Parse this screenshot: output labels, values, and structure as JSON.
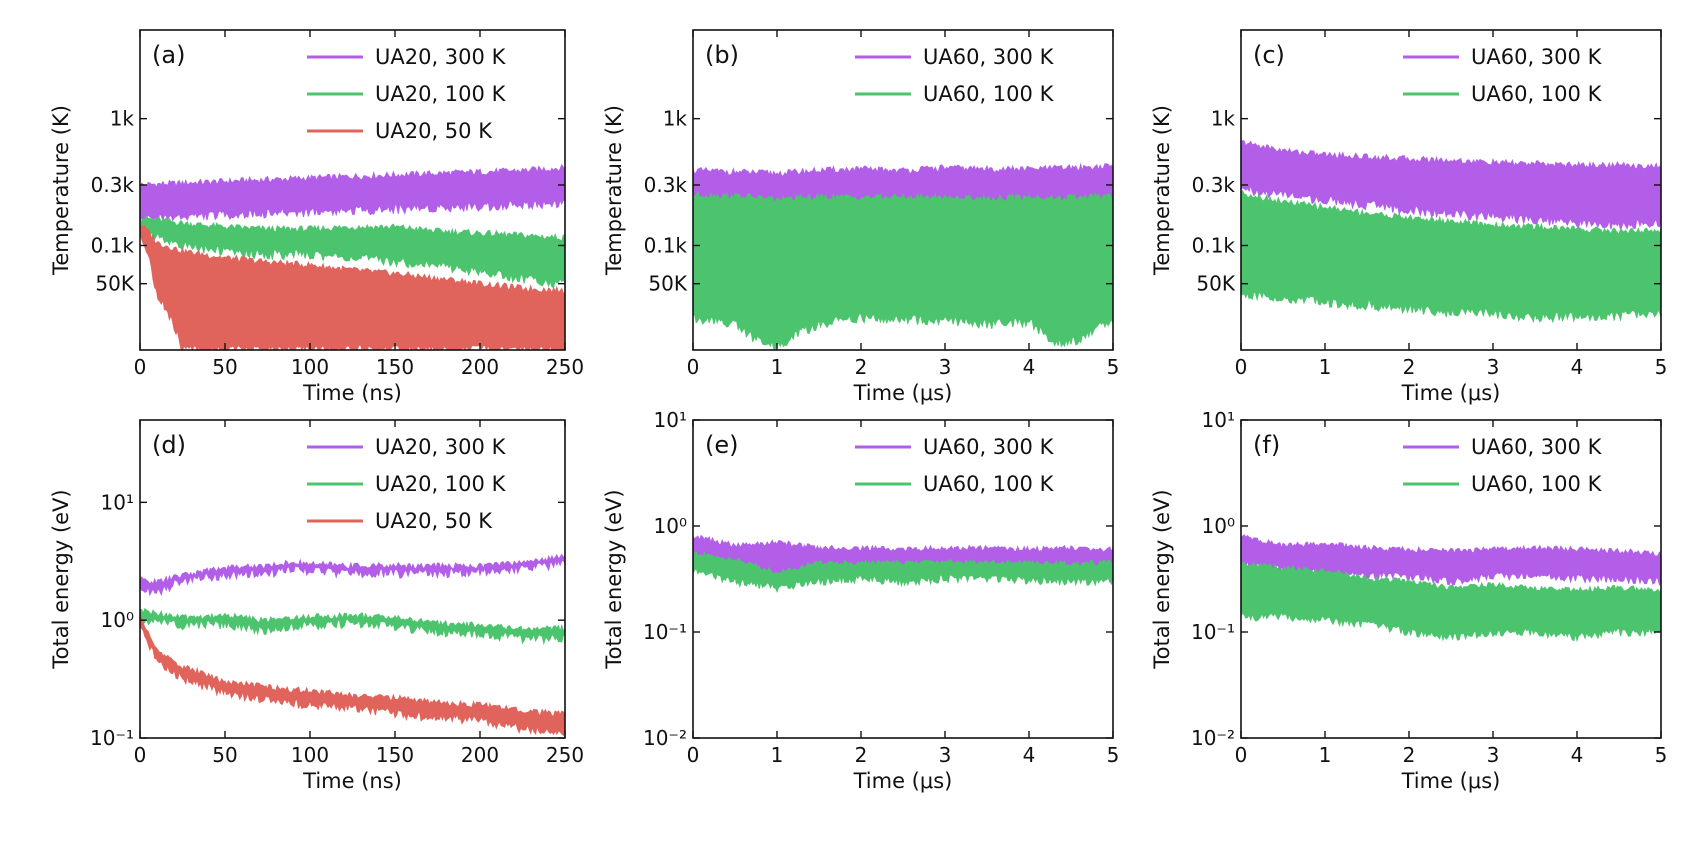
{
  "chart_data": [
    {
      "panel": "(a)",
      "type": "line",
      "xlabel": "Time (ns)",
      "ylabel": "Temperature (K)",
      "yscale": "log",
      "xlim": [
        0,
        250
      ],
      "ylim": [
        15,
        5000
      ],
      "x_ticks": [
        0,
        50,
        100,
        150,
        200,
        250
      ],
      "x_tick_labels": [
        "0",
        "50",
        "100",
        "150",
        "200",
        "250"
      ],
      "y_ticks": [
        50,
        100,
        300,
        1000
      ],
      "y_tick_labels": [
        "50K",
        "0.1k",
        "0.3k",
        "1k"
      ],
      "legend_position": "top-right",
      "series": [
        {
          "name": "UA20, 300 K",
          "color": "#b25ee8",
          "x": [
            0,
            25,
            50,
            75,
            100,
            125,
            150,
            175,
            200,
            225,
            250
          ],
          "upper": [
            300,
            310,
            320,
            330,
            340,
            350,
            360,
            370,
            380,
            390,
            410
          ],
          "lower": [
            160,
            170,
            175,
            180,
            185,
            190,
            195,
            200,
            205,
            210,
            220
          ]
        },
        {
          "name": "UA20, 100 K",
          "color": "#4cc46e",
          "x": [
            0,
            25,
            50,
            75,
            100,
            125,
            150,
            175,
            200,
            225,
            250
          ],
          "upper": [
            165,
            150,
            140,
            135,
            135,
            140,
            140,
            130,
            125,
            120,
            115
          ],
          "lower": [
            130,
            100,
            90,
            85,
            85,
            80,
            75,
            70,
            62,
            55,
            50
          ]
        },
        {
          "name": "UA20, 50 K",
          "color": "#e0635c",
          "x": [
            0,
            10,
            25,
            50,
            75,
            100,
            125,
            150,
            175,
            200,
            225,
            250
          ],
          "upper": [
            150,
            105,
            90,
            80,
            74,
            70,
            64,
            60,
            55,
            50,
            46,
            44
          ],
          "lower": [
            120,
            40,
            15,
            15,
            15,
            15,
            15,
            15,
            15,
            15,
            15,
            15
          ]
        }
      ]
    },
    {
      "panel": "(b)",
      "type": "line",
      "xlabel": "Time (μs)",
      "ylabel": "Temperature (K)",
      "yscale": "log",
      "xlim": [
        0,
        5
      ],
      "ylim": [
        15,
        5000
      ],
      "x_ticks": [
        0,
        1,
        2,
        3,
        4,
        5
      ],
      "x_tick_labels": [
        "0",
        "1",
        "2",
        "3",
        "4",
        "5"
      ],
      "y_ticks": [
        50,
        100,
        300,
        1000
      ],
      "y_tick_labels": [
        "50K",
        "0.1k",
        "0.3k",
        "1k"
      ],
      "legend_position": "top-right",
      "series": [
        {
          "name": "UA60, 300 K",
          "color": "#b25ee8",
          "x": [
            0,
            0.5,
            1,
            1.5,
            2,
            2.5,
            3,
            3.5,
            4,
            4.5,
            5
          ],
          "upper": [
            390,
            380,
            370,
            390,
            400,
            390,
            410,
            400,
            400,
            410,
            420
          ],
          "lower": [
            210,
            200,
            170,
            200,
            210,
            210,
            215,
            210,
            210,
            205,
            215
          ]
        },
        {
          "name": "UA60, 100 K",
          "color": "#4cc46e",
          "x": [
            0,
            0.5,
            0.75,
            1,
            1.5,
            2,
            2.5,
            3,
            3.5,
            4,
            4.3,
            4.6,
            5
          ],
          "upper": [
            250,
            245,
            240,
            230,
            240,
            240,
            240,
            240,
            235,
            240,
            235,
            240,
            245
          ],
          "lower": [
            27,
            24,
            18,
            16,
            24,
            27,
            26,
            26,
            24,
            25,
            17,
            18,
            26
          ]
        }
      ]
    },
    {
      "panel": "(c)",
      "type": "line",
      "xlabel": "Time (μs)",
      "ylabel": "Temperature (K)",
      "yscale": "log",
      "xlim": [
        0,
        5
      ],
      "ylim": [
        15,
        5000
      ],
      "x_ticks": [
        0,
        1,
        2,
        3,
        4,
        5
      ],
      "x_tick_labels": [
        "0",
        "1",
        "2",
        "3",
        "4",
        "5"
      ],
      "y_ticks": [
        50,
        100,
        300,
        1000
      ],
      "y_tick_labels": [
        "50K",
        "0.1k",
        "0.3k",
        "1k"
      ],
      "legend_position": "top-right",
      "series": [
        {
          "name": "UA60, 300 K",
          "color": "#b25ee8",
          "x": [
            0,
            0.5,
            1,
            1.5,
            2,
            2.5,
            3,
            3.5,
            4,
            4.5,
            5
          ],
          "upper": [
            650,
            560,
            520,
            500,
            480,
            470,
            450,
            440,
            430,
            430,
            420
          ],
          "lower": [
            280,
            250,
            230,
            210,
            190,
            180,
            170,
            160,
            150,
            145,
            150
          ]
        },
        {
          "name": "UA60, 100 K",
          "color": "#4cc46e",
          "x": [
            0,
            0.5,
            1,
            1.5,
            2,
            2.5,
            3,
            3.5,
            4,
            4.5,
            5
          ],
          "upper": [
            260,
            220,
            200,
            180,
            165,
            155,
            145,
            140,
            135,
            130,
            130
          ],
          "lower": [
            42,
            38,
            36,
            34,
            32,
            30,
            29,
            27,
            28,
            28,
            29
          ]
        }
      ]
    },
    {
      "panel": "(d)",
      "type": "line",
      "xlabel": "Time (ns)",
      "ylabel": "Total energy (eV)",
      "yscale": "log",
      "xlim": [
        0,
        250
      ],
      "ylim": [
        0.1,
        50
      ],
      "x_ticks": [
        0,
        50,
        100,
        150,
        200,
        250
      ],
      "x_tick_labels": [
        "0",
        "50",
        "100",
        "150",
        "200",
        "250"
      ],
      "y_ticks": [
        0.1,
        1,
        10
      ],
      "y_tick_labels": [
        "10⁻¹",
        "10⁰",
        "10¹"
      ],
      "legend_position": "top-right",
      "series": [
        {
          "name": "UA20, 300 K",
          "color": "#b25ee8",
          "x": [
            0,
            10,
            25,
            50,
            75,
            90,
            100,
            125,
            150,
            175,
            200,
            225,
            250
          ],
          "upper": [
            2.2,
            2.1,
            2.4,
            2.8,
            2.9,
            3.1,
            3.0,
            2.9,
            2.9,
            2.9,
            2.9,
            3.1,
            3.5
          ],
          "lower": [
            1.9,
            1.7,
            2.2,
            2.4,
            2.5,
            2.7,
            2.6,
            2.5,
            2.5,
            2.5,
            2.6,
            2.7,
            3.0
          ]
        },
        {
          "name": "UA20, 100 K",
          "color": "#4cc46e",
          "x": [
            0,
            10,
            25,
            50,
            75,
            100,
            125,
            150,
            175,
            200,
            225,
            250
          ],
          "upper": [
            1.2,
            1.15,
            1.05,
            1.1,
            1.0,
            1.08,
            1.1,
            1.05,
            0.95,
            0.9,
            0.85,
            0.85
          ],
          "lower": [
            1.0,
            0.98,
            0.9,
            0.92,
            0.82,
            0.9,
            0.95,
            0.88,
            0.8,
            0.75,
            0.7,
            0.7
          ]
        },
        {
          "name": "UA20, 50 K",
          "color": "#e0635c",
          "x": [
            0,
            5,
            10,
            25,
            50,
            75,
            100,
            125,
            150,
            175,
            200,
            225,
            250
          ],
          "upper": [
            1.1,
            0.75,
            0.55,
            0.4,
            0.3,
            0.27,
            0.25,
            0.23,
            0.22,
            0.2,
            0.19,
            0.17,
            0.16
          ],
          "lower": [
            0.95,
            0.6,
            0.45,
            0.32,
            0.24,
            0.21,
            0.19,
            0.18,
            0.16,
            0.15,
            0.14,
            0.12,
            0.115
          ]
        }
      ]
    },
    {
      "panel": "(e)",
      "type": "line",
      "xlabel": "Time (μs)",
      "ylabel": "Total energy (eV)",
      "yscale": "log",
      "xlim": [
        0,
        5
      ],
      "ylim": [
        0.01,
        10
      ],
      "x_ticks": [
        0,
        1,
        2,
        3,
        4,
        5
      ],
      "x_tick_labels": [
        "0",
        "1",
        "2",
        "3",
        "4",
        "5"
      ],
      "y_ticks": [
        0.01,
        0.1,
        1,
        10
      ],
      "y_tick_labels": [
        "10⁻²",
        "10⁻¹",
        "10⁰",
        "10¹"
      ],
      "legend_position": "top-right",
      "series": [
        {
          "name": "UA60, 300 K",
          "color": "#b25ee8",
          "x": [
            0,
            0.5,
            1,
            1.5,
            2,
            2.5,
            3,
            3.5,
            4,
            4.5,
            5
          ],
          "upper": [
            0.8,
            0.65,
            0.7,
            0.62,
            0.62,
            0.6,
            0.62,
            0.62,
            0.6,
            0.62,
            0.6
          ],
          "lower": [
            0.4,
            0.36,
            0.32,
            0.38,
            0.38,
            0.36,
            0.38,
            0.38,
            0.36,
            0.35,
            0.32
          ]
        },
        {
          "name": "UA60, 100 K",
          "color": "#4cc46e",
          "x": [
            0,
            0.5,
            1,
            1.5,
            2,
            2.5,
            3,
            3.5,
            4,
            4.5,
            5
          ],
          "upper": [
            0.55,
            0.48,
            0.36,
            0.45,
            0.45,
            0.45,
            0.46,
            0.46,
            0.45,
            0.44,
            0.45
          ],
          "lower": [
            0.38,
            0.3,
            0.26,
            0.3,
            0.32,
            0.3,
            0.32,
            0.32,
            0.31,
            0.3,
            0.3
          ]
        }
      ]
    },
    {
      "panel": "(f)",
      "type": "line",
      "xlabel": "Time (μs)",
      "ylabel": "Total energy (eV)",
      "yscale": "log",
      "xlim": [
        0,
        5
      ],
      "ylim": [
        0.01,
        10
      ],
      "x_ticks": [
        0,
        1,
        2,
        3,
        4,
        5
      ],
      "x_tick_labels": [
        "0",
        "1",
        "2",
        "3",
        "4",
        "5"
      ],
      "y_ticks": [
        0.01,
        0.1,
        1,
        10
      ],
      "y_tick_labels": [
        "10⁻²",
        "10⁻¹",
        "10⁰",
        "10¹"
      ],
      "legend_position": "top-right",
      "series": [
        {
          "name": "UA60, 300 K",
          "color": "#b25ee8",
          "x": [
            0,
            0.5,
            1,
            1.5,
            2,
            2.5,
            3,
            3.5,
            4,
            4.5,
            5
          ],
          "upper": [
            0.8,
            0.65,
            0.68,
            0.62,
            0.6,
            0.58,
            0.6,
            0.62,
            0.6,
            0.58,
            0.55
          ],
          "lower": [
            0.45,
            0.38,
            0.36,
            0.34,
            0.34,
            0.3,
            0.34,
            0.34,
            0.32,
            0.32,
            0.3
          ]
        },
        {
          "name": "UA60, 100 K",
          "color": "#4cc46e",
          "x": [
            0,
            0.5,
            1,
            1.5,
            2,
            2.5,
            3,
            3.5,
            4,
            4.5,
            5
          ],
          "upper": [
            0.45,
            0.4,
            0.38,
            0.32,
            0.3,
            0.26,
            0.28,
            0.26,
            0.25,
            0.26,
            0.25
          ],
          "lower": [
            0.14,
            0.14,
            0.13,
            0.12,
            0.1,
            0.09,
            0.1,
            0.1,
            0.09,
            0.1,
            0.1
          ]
        }
      ]
    }
  ]
}
